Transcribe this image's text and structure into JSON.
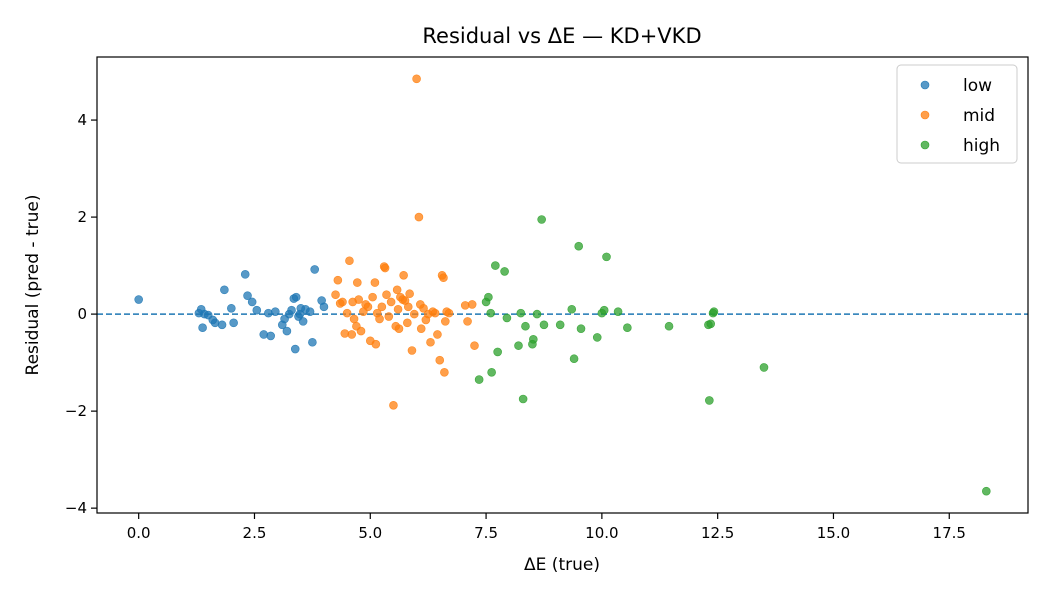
{
  "chart_data": {
    "type": "scatter",
    "title": "Residual vs ΔE — KD+VKD",
    "xlabel": "ΔE (true)",
    "ylabel": "Residual (pred - true)",
    "xlim": [
      -0.9,
      19.2
    ],
    "ylim": [
      -4.1,
      5.3
    ],
    "xticks": [
      0.0,
      2.5,
      5.0,
      7.5,
      10.0,
      12.5,
      15.0,
      17.5
    ],
    "xtick_labels": [
      "0.0",
      "2.5",
      "5.0",
      "7.5",
      "10.0",
      "12.5",
      "15.0",
      "17.5"
    ],
    "yticks": [
      -4,
      -2,
      0,
      2,
      4
    ],
    "ytick_labels": [
      "−4",
      "−2",
      "0",
      "2",
      "4"
    ],
    "reference_line": {
      "y": 0,
      "style": "dashed",
      "color": "#1f77b4"
    },
    "grid": false,
    "legend_position": "top-right",
    "series": [
      {
        "name": "low",
        "color": "#1f77b4",
        "x": [
          0.0,
          1.3,
          1.35,
          1.38,
          1.42,
          1.5,
          1.6,
          1.65,
          1.8,
          1.85,
          2.0,
          2.05,
          2.3,
          2.35,
          2.45,
          2.55,
          2.7,
          2.8,
          2.85,
          2.95,
          3.1,
          3.15,
          3.2,
          3.25,
          3.3,
          3.35,
          3.38,
          3.4,
          3.45,
          3.48,
          3.5,
          3.55,
          3.6,
          3.7,
          3.75,
          3.8,
          3.95,
          4.0
        ],
        "y": [
          0.3,
          0.02,
          0.1,
          -0.28,
          0.0,
          -0.02,
          -0.12,
          -0.18,
          -0.22,
          0.5,
          0.12,
          -0.18,
          0.82,
          0.38,
          0.25,
          0.08,
          -0.42,
          0.02,
          -0.45,
          0.05,
          -0.22,
          -0.1,
          -0.35,
          0.0,
          0.08,
          0.32,
          -0.72,
          0.35,
          -0.05,
          0.0,
          0.12,
          -0.15,
          0.1,
          0.05,
          -0.58,
          0.92,
          0.28,
          0.15
        ]
      },
      {
        "name": "mid",
        "color": "#ff7f0e",
        "x": [
          4.25,
          4.3,
          4.35,
          4.4,
          4.45,
          4.5,
          4.55,
          4.6,
          4.62,
          4.65,
          4.7,
          4.72,
          4.75,
          4.8,
          4.85,
          4.9,
          4.95,
          5.0,
          5.05,
          5.1,
          5.12,
          5.15,
          5.2,
          5.25,
          5.3,
          5.32,
          5.35,
          5.4,
          5.45,
          5.5,
          5.55,
          5.58,
          5.6,
          5.62,
          5.65,
          5.7,
          5.72,
          5.75,
          5.8,
          5.82,
          5.85,
          5.9,
          5.95,
          6.0,
          6.05,
          6.08,
          6.1,
          6.15,
          6.2,
          6.25,
          6.3,
          6.35,
          6.4,
          6.45,
          6.5,
          6.55,
          6.58,
          6.6,
          6.62,
          6.65,
          6.7,
          7.05,
          7.1,
          7.2,
          7.25
        ],
        "y": [
          0.4,
          0.7,
          0.22,
          0.25,
          -0.4,
          0.02,
          1.1,
          -0.42,
          0.25,
          -0.1,
          -0.25,
          0.65,
          0.3,
          -0.35,
          0.05,
          0.2,
          0.15,
          -0.55,
          0.35,
          0.65,
          -0.62,
          0.02,
          -0.1,
          0.15,
          0.98,
          0.95,
          0.4,
          -0.05,
          0.25,
          -1.88,
          -0.25,
          0.5,
          0.1,
          -0.3,
          0.35,
          0.3,
          0.8,
          0.28,
          -0.18,
          0.15,
          0.42,
          -0.75,
          0.0,
          4.85,
          2.0,
          0.2,
          -0.3,
          0.12,
          -0.12,
          0.0,
          -0.58,
          0.05,
          0.02,
          -0.42,
          -0.95,
          0.8,
          0.75,
          -1.2,
          -0.15,
          0.05,
          0.02,
          0.18,
          -0.15,
          0.2,
          -0.65
        ]
      },
      {
        "name": "high",
        "color": "#2ca02c",
        "x": [
          7.35,
          7.5,
          7.55,
          7.6,
          7.62,
          7.7,
          7.75,
          7.9,
          7.95,
          8.2,
          8.25,
          8.3,
          8.35,
          8.5,
          8.52,
          8.6,
          8.7,
          8.75,
          9.1,
          9.35,
          9.4,
          9.5,
          9.55,
          9.9,
          10.0,
          10.05,
          10.1,
          10.35,
          10.55,
          11.45,
          12.3,
          12.32,
          12.35,
          12.4,
          12.42,
          13.5,
          18.3
        ],
        "y": [
          -1.35,
          0.25,
          0.35,
          0.02,
          -1.2,
          1.0,
          -0.78,
          0.88,
          -0.08,
          -0.65,
          0.02,
          -1.75,
          -0.25,
          -0.62,
          -0.52,
          0.0,
          1.95,
          -0.22,
          -0.22,
          0.1,
          -0.92,
          1.4,
          -0.3,
          -0.48,
          0.02,
          0.08,
          1.18,
          0.05,
          -0.28,
          -0.25,
          -0.22,
          -1.78,
          -0.2,
          0.02,
          0.05,
          -1.1,
          -3.65
        ]
      }
    ]
  }
}
